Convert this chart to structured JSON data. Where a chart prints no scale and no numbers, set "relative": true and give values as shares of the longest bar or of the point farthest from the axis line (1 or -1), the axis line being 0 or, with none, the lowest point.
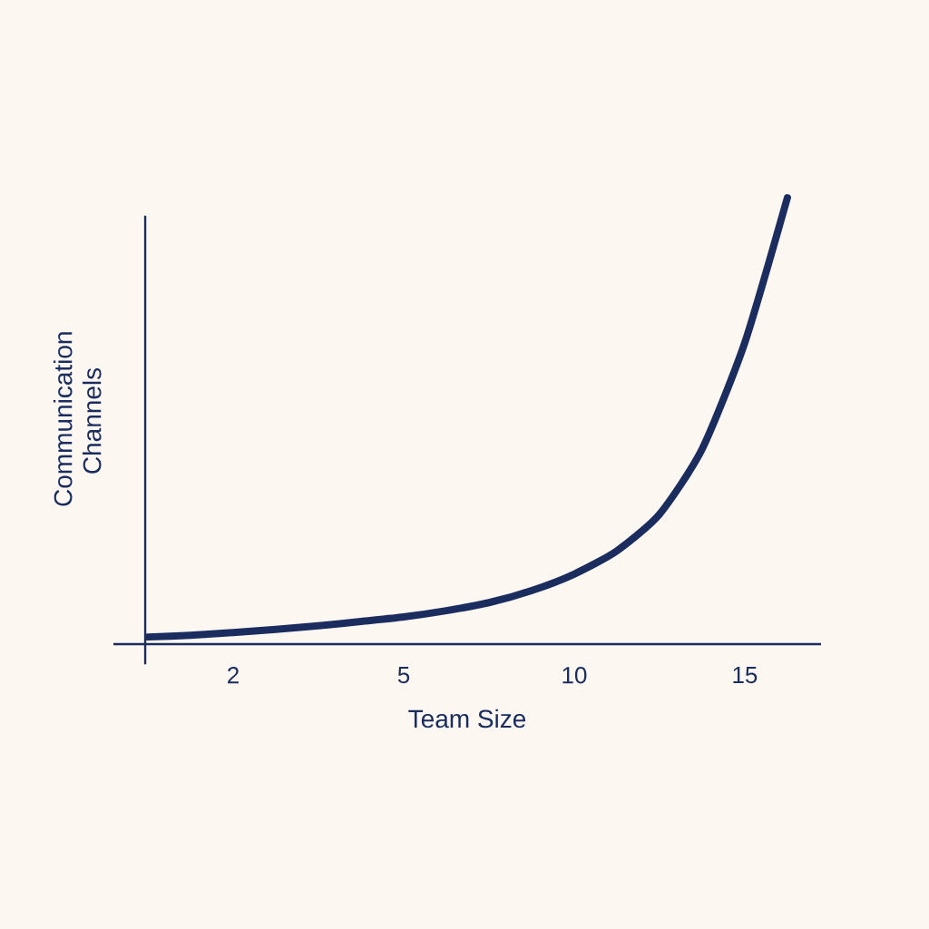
{
  "chart_data": {
    "type": "line",
    "xlabel": "Team Size",
    "ylabel": "Communication Channels",
    "relative": true,
    "categories": [
      null,
      null,
      "2",
      null,
      null,
      null,
      "5",
      null,
      null,
      null,
      "10",
      null,
      null,
      null,
      "15",
      null
    ],
    "series": [
      {
        "color": "#1b2d5e",
        "values": [
          0.016,
          0.02,
          0.026,
          0.033,
          0.041,
          0.051,
          0.061,
          0.075,
          0.093,
          0.12,
          0.157,
          0.209,
          0.291,
          0.437,
          0.675,
          1
        ]
      }
    ]
  }
}
